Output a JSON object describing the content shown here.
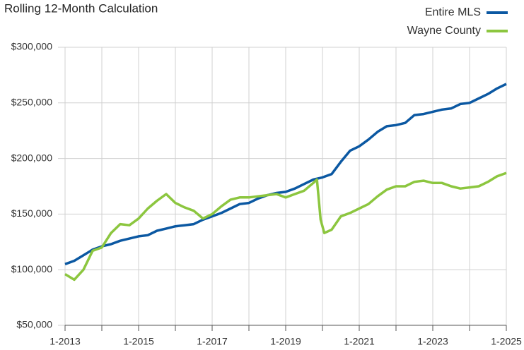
{
  "chart_data": {
    "type": "line",
    "title": "Rolling 12-Month Calculation",
    "xlim": [
      2013,
      2025
    ],
    "xticks": [
      {
        "value": 2013,
        "label": "1-2013"
      },
      {
        "value": 2015,
        "label": "1-2015"
      },
      {
        "value": 2017,
        "label": "1-2017"
      },
      {
        "value": 2019,
        "label": "1-2019"
      },
      {
        "value": 2021,
        "label": "1-2021"
      },
      {
        "value": 2023,
        "label": "1-2023"
      },
      {
        "value": 2025,
        "label": "1-2025"
      }
    ],
    "xminor": [
      2014,
      2016,
      2018,
      2020,
      2022,
      2024
    ],
    "ylim": [
      50000,
      300000
    ],
    "yticks": [
      {
        "value": 50000,
        "label": "$50,000"
      },
      {
        "value": 100000,
        "label": "$100,000"
      },
      {
        "value": 150000,
        "label": "$150,000"
      },
      {
        "value": 200000,
        "label": "$200,000"
      },
      {
        "value": 250000,
        "label": "$250,000"
      },
      {
        "value": 300000,
        "label": "$300,000"
      }
    ],
    "grid": true,
    "legend": "top-right",
    "series": [
      {
        "name": "Entire MLS",
        "color": "#0b58a2",
        "x": [
          2013,
          2013.25,
          2013.5,
          2013.75,
          2014,
          2014.25,
          2014.5,
          2014.75,
          2015,
          2015.25,
          2015.5,
          2015.75,
          2016,
          2016.25,
          2016.5,
          2016.75,
          2017,
          2017.25,
          2017.5,
          2017.75,
          2018,
          2018.25,
          2018.5,
          2018.75,
          2019,
          2019.25,
          2019.5,
          2019.75,
          2020,
          2020.25,
          2020.5,
          2020.75,
          2021,
          2021.25,
          2021.5,
          2021.75,
          2022,
          2022.25,
          2022.5,
          2022.75,
          2023,
          2023.25,
          2023.5,
          2023.75,
          2024,
          2024.25,
          2024.5,
          2024.75,
          2025
        ],
        "values": [
          105000,
          108000,
          113000,
          118000,
          121000,
          123000,
          126000,
          128000,
          130000,
          131000,
          135000,
          137000,
          139000,
          140000,
          141000,
          145000,
          148000,
          151000,
          155000,
          159000,
          160000,
          164000,
          167000,
          169000,
          170000,
          173000,
          177000,
          181000,
          183000,
          186000,
          197000,
          207000,
          211000,
          217000,
          224000,
          229000,
          230000,
          232000,
          239000,
          240000,
          242000,
          244000,
          245000,
          249000,
          250000,
          254000,
          258000,
          263000,
          267000
        ]
      },
      {
        "name": "Wayne County",
        "color": "#8cc63f",
        "x": [
          2013,
          2013.25,
          2013.5,
          2013.75,
          2014,
          2014.25,
          2014.5,
          2014.75,
          2015,
          2015.25,
          2015.5,
          2015.75,
          2016,
          2016.25,
          2016.5,
          2016.75,
          2017,
          2017.25,
          2017.5,
          2017.75,
          2018,
          2018.25,
          2018.5,
          2018.75,
          2019,
          2019.25,
          2019.5,
          2019.75,
          2019.85,
          2019.95,
          2020.05,
          2020.25,
          2020.5,
          2020.75,
          2021,
          2021.25,
          2021.5,
          2021.75,
          2022,
          2022.25,
          2022.5,
          2022.75,
          2023,
          2023.25,
          2023.5,
          2023.75,
          2024,
          2024.25,
          2024.5,
          2024.75,
          2025
        ],
        "values": [
          96000,
          91000,
          100000,
          117000,
          120000,
          133000,
          141000,
          140000,
          146000,
          155000,
          162000,
          168000,
          160000,
          156000,
          153000,
          146000,
          150000,
          157000,
          163000,
          165000,
          165000,
          166000,
          167000,
          168000,
          165000,
          168000,
          171000,
          178000,
          181000,
          145000,
          133000,
          136000,
          148000,
          151000,
          155000,
          159000,
          166000,
          172000,
          175000,
          175000,
          179000,
          180000,
          178000,
          178000,
          175000,
          173000,
          174000,
          175000,
          179000,
          184000,
          187000
        ]
      }
    ]
  }
}
